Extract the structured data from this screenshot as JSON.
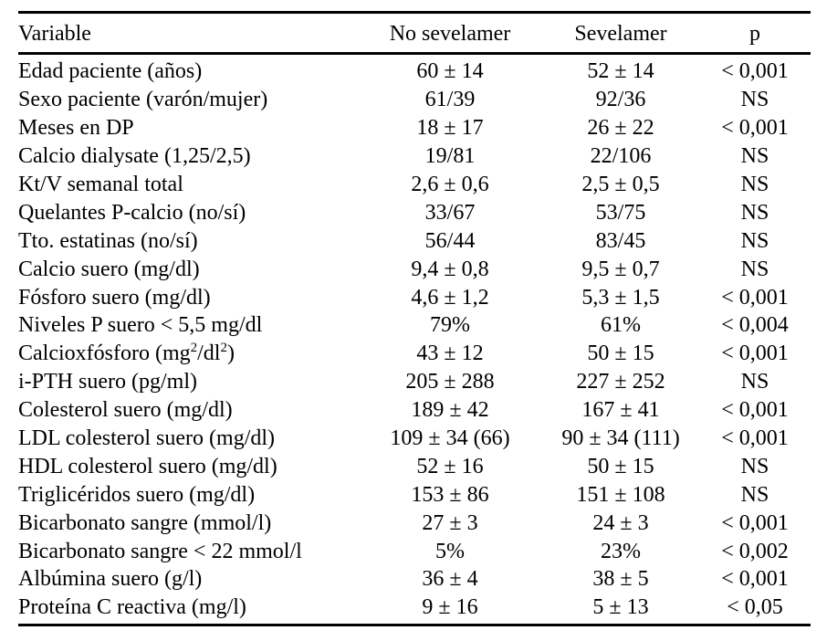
{
  "table": {
    "headers": {
      "variable": "Variable",
      "no_sevelamer": "No sevelamer",
      "sevelamer": "Sevelamer",
      "p": "p"
    },
    "rows": [
      {
        "variable": "Edad paciente (años)",
        "no_sevelamer": "60 ± 14",
        "sevelamer": "52 ± 14",
        "p": "< 0,001"
      },
      {
        "variable": "Sexo paciente (varón/mujer)",
        "no_sevelamer": "61/39",
        "sevelamer": "92/36",
        "p": "NS"
      },
      {
        "variable": "Meses en DP",
        "no_sevelamer": "18 ± 17",
        "sevelamer": "26 ± 22",
        "p": "< 0,001"
      },
      {
        "variable": "Calcio dialysate (1,25/2,5)",
        "no_sevelamer": "19/81",
        "sevelamer": "22/106",
        "p": "NS"
      },
      {
        "variable": "Kt/V semanal total",
        "no_sevelamer": "2,6 ± 0,6",
        "sevelamer": "2,5 ± 0,5",
        "p": "NS"
      },
      {
        "variable": "Quelantes P-calcio (no/sí)",
        "no_sevelamer": "33/67",
        "sevelamer": "53/75",
        "p": "NS"
      },
      {
        "variable": "Tto. estatinas (no/sí)",
        "no_sevelamer": "56/44",
        "sevelamer": "83/45",
        "p": "NS"
      },
      {
        "variable": "Calcio suero (mg/dl)",
        "no_sevelamer": "9,4 ± 0,8",
        "sevelamer": "9,5 ± 0,7",
        "p": "NS"
      },
      {
        "variable": "Fósforo suero (mg/dl)",
        "no_sevelamer": "4,6 ± 1,2",
        "sevelamer": "5,3 ± 1,5",
        "p": "< 0,001"
      },
      {
        "variable": "Niveles P suero < 5,5 mg/dl",
        "no_sevelamer": "79%",
        "sevelamer": "61%",
        "p": "< 0,004"
      },
      {
        "variable_parts": [
          "Calcioxfósforo (mg",
          "2",
          "/dl",
          "2",
          ")"
        ],
        "no_sevelamer": "43 ± 12",
        "sevelamer": "50 ± 15",
        "p": "< 0,001"
      },
      {
        "variable": "i-PTH suero (pg/ml)",
        "no_sevelamer": "205 ± 288",
        "sevelamer": "227 ± 252",
        "p": "NS"
      },
      {
        "variable": "Colesterol suero (mg/dl)",
        "no_sevelamer": "189 ± 42",
        "sevelamer": "167 ± 41",
        "p": "< 0,001"
      },
      {
        "variable": "LDL colesterol suero (mg/dl)",
        "no_sevelamer": "109 ± 34 (66)",
        "sevelamer": "90 ± 34 (111)",
        "p": "< 0,001"
      },
      {
        "variable": "HDL colesterol suero (mg/dl)",
        "no_sevelamer": "52 ± 16",
        "sevelamer": "50 ± 15",
        "p": "NS"
      },
      {
        "variable": "Triglicéridos suero (mg/dl)",
        "no_sevelamer": "153 ± 86",
        "sevelamer": "151 ± 108",
        "p": "NS"
      },
      {
        "variable": "Bicarbonato sangre (mmol/l)",
        "no_sevelamer": "27 ± 3",
        "sevelamer": "24 ± 3",
        "p": "< 0,001"
      },
      {
        "variable": "Bicarbonato sangre < 22 mmol/l",
        "no_sevelamer": "5%",
        "sevelamer": "23%",
        "p": "< 0,002"
      },
      {
        "variable": "Albúmina suero (g/l)",
        "no_sevelamer": "36 ± 4",
        "sevelamer": "38 ± 5",
        "p": "< 0,001"
      },
      {
        "variable": "Proteína C reactiva (mg/l)",
        "no_sevelamer": "9 ± 16",
        "sevelamer": "5 ± 13",
        "p": "< 0,05"
      }
    ]
  }
}
